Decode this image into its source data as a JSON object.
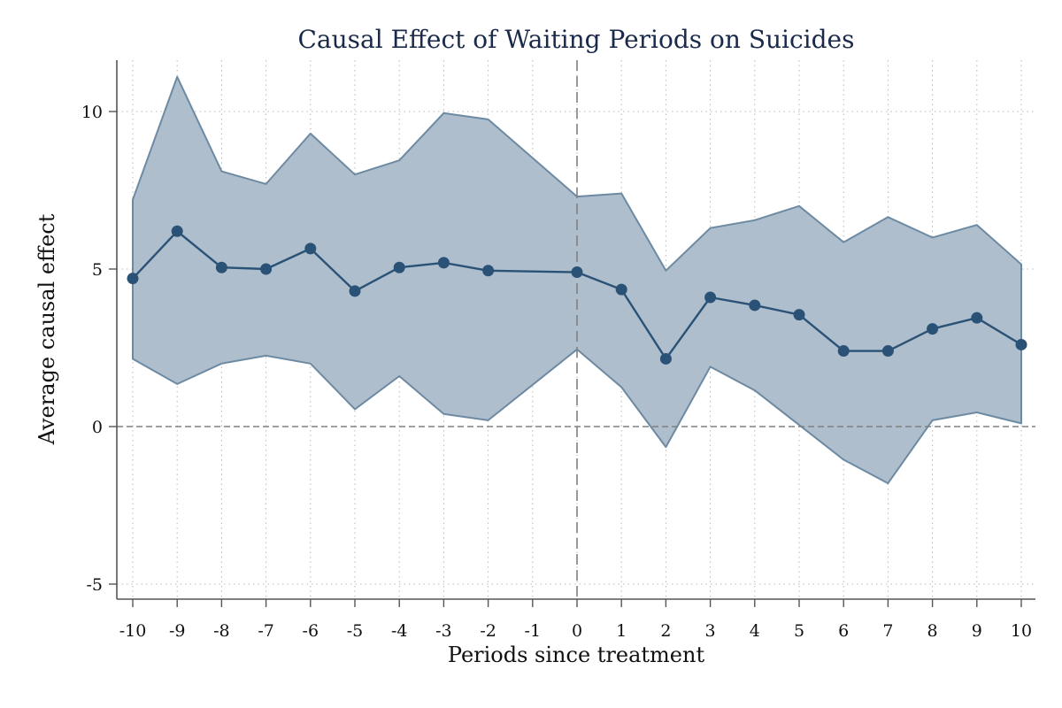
{
  "chart_data": {
    "type": "line",
    "title": "Causal Effect of Waiting Periods on Suicides",
    "xlabel": "Periods since treatment",
    "ylabel": "Average causal effect",
    "xlim": [
      -10,
      10
    ],
    "ylim": [
      -5,
      10
    ],
    "x_ticks": [
      "-10",
      "-9",
      "-8",
      "-7",
      "-6",
      "-5",
      "-4",
      "-3",
      "-2",
      "-1",
      "0",
      "1",
      "2",
      "3",
      "4",
      "5",
      "6",
      "7",
      "8",
      "9",
      "10"
    ],
    "y_ticks": [
      "-5",
      "0",
      "5",
      "10"
    ],
    "grid": "dotted",
    "x": [
      -10,
      -9,
      -8,
      -7,
      -6,
      -5,
      -4,
      -3,
      -2,
      0,
      1,
      2,
      3,
      4,
      5,
      6,
      7,
      8,
      9,
      10
    ],
    "series": [
      {
        "values": [
          4.7,
          6.2,
          5.05,
          5.0,
          5.65,
          4.3,
          5.05,
          5.2,
          4.95,
          4.9,
          4.35,
          2.15,
          4.1,
          3.85,
          3.55,
          2.4,
          2.4,
          3.1,
          3.45,
          2.6
        ]
      }
    ],
    "ci_upper": [
      7.2,
      11.1,
      8.1,
      7.7,
      9.3,
      8.0,
      8.45,
      9.95,
      9.75,
      7.3,
      7.4,
      4.95,
      6.3,
      6.55,
      7.0,
      5.85,
      6.65,
      6.0,
      6.4,
      5.15
    ],
    "ci_lower": [
      2.15,
      1.35,
      2.0,
      2.25,
      2.0,
      0.55,
      1.6,
      0.4,
      0.2,
      2.45,
      1.25,
      -0.65,
      1.9,
      1.15,
      0.05,
      -1.05,
      -1.8,
      0.2,
      0.45,
      0.1
    ],
    "reference_lines": {
      "x": 0,
      "y": 0
    },
    "colors": {
      "line": "#2a5277",
      "band_fill": "#aebecc",
      "band_edge": "#6d8aa3",
      "grid": "#b8b8b8",
      "reference": "#808080",
      "title": "#1a2a4a"
    }
  }
}
